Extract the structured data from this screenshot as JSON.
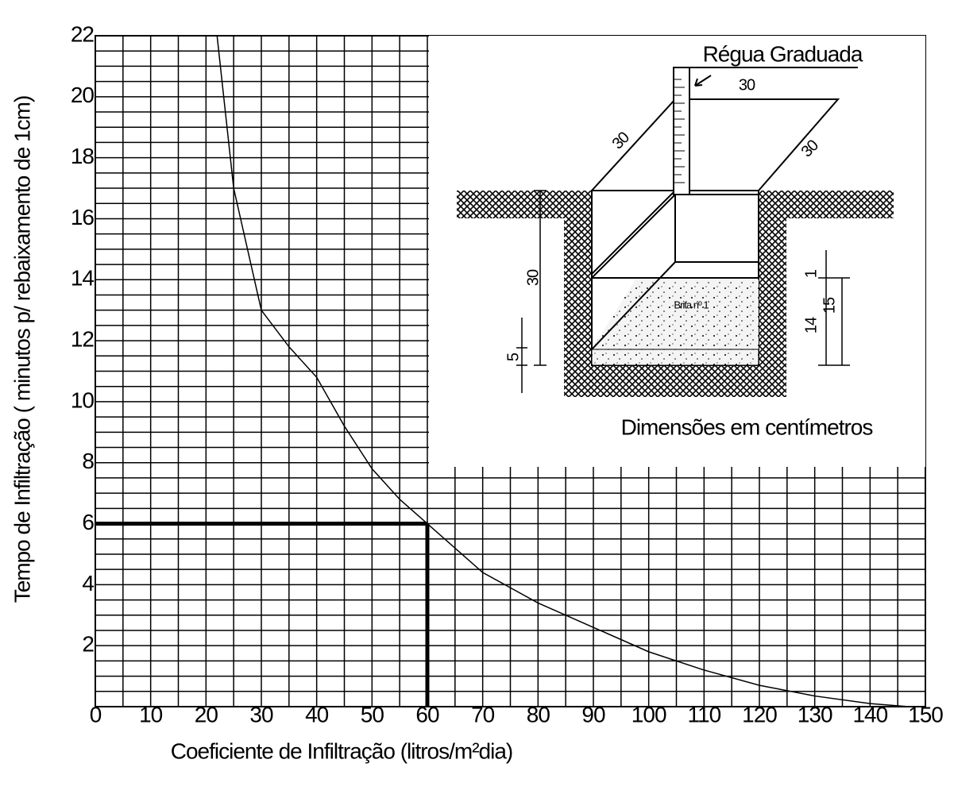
{
  "chart_data": {
    "type": "line",
    "x_label": "Coeficiente de Infiltração (litros/m²dia)",
    "y_label": "Tempo de Infiltração ( minutos p/ rebaixamento de 1cm)",
    "x": [
      22,
      25,
      30,
      35,
      40,
      45,
      50,
      55,
      60,
      70,
      80,
      90,
      100,
      110,
      120,
      130,
      140,
      147
    ],
    "values": [
      22,
      17,
      13,
      11.8,
      10.8,
      9.2,
      7.8,
      6.8,
      6,
      4.4,
      3.4,
      2.6,
      1.8,
      1.2,
      0.7,
      0.35,
      0.1,
      0
    ],
    "color": "#000000",
    "xlim": [
      0,
      150
    ],
    "ylim": [
      0,
      22
    ],
    "xticks": [
      0,
      10,
      20,
      30,
      40,
      50,
      60,
      70,
      80,
      90,
      100,
      110,
      120,
      130,
      140,
      150
    ],
    "yticks": [
      2,
      4,
      6,
      8,
      10,
      12,
      14,
      16,
      18,
      20,
      22
    ],
    "xgrid": [
      0,
      5,
      10,
      15,
      20,
      25,
      30,
      35,
      40,
      45,
      50,
      55,
      60,
      65,
      70,
      75,
      80,
      85,
      90,
      95,
      100,
      105,
      110,
      115,
      120,
      125,
      130,
      135,
      140,
      145,
      150
    ],
    "ygrid": [
      0,
      0.5,
      1,
      1.5,
      2,
      2.5,
      3,
      3.5,
      4,
      4.5,
      5,
      5.5,
      6,
      6.5,
      7,
      7.5,
      8,
      8.5,
      9,
      9.5,
      10,
      10.5,
      11,
      11.5,
      12,
      12.5,
      13,
      13.5,
      14,
      14.5,
      15,
      15.5,
      16,
      16.5,
      17,
      17.5,
      18,
      18.5,
      19,
      19.5,
      20,
      20.5,
      21,
      21.5,
      22
    ],
    "highlight": {
      "x": 60,
      "y": 6
    }
  },
  "inset": {
    "ruler_label": "Régua Graduada",
    "top_width": "30",
    "left_depth": "30",
    "right_depth": "30",
    "pit_depth": "30",
    "bottom_layer": "5",
    "gap": "1",
    "gravel_height": "14",
    "gravel_total": "15",
    "gravel_label": "Brita nº 1",
    "note": "Dimensões em centímetros"
  }
}
